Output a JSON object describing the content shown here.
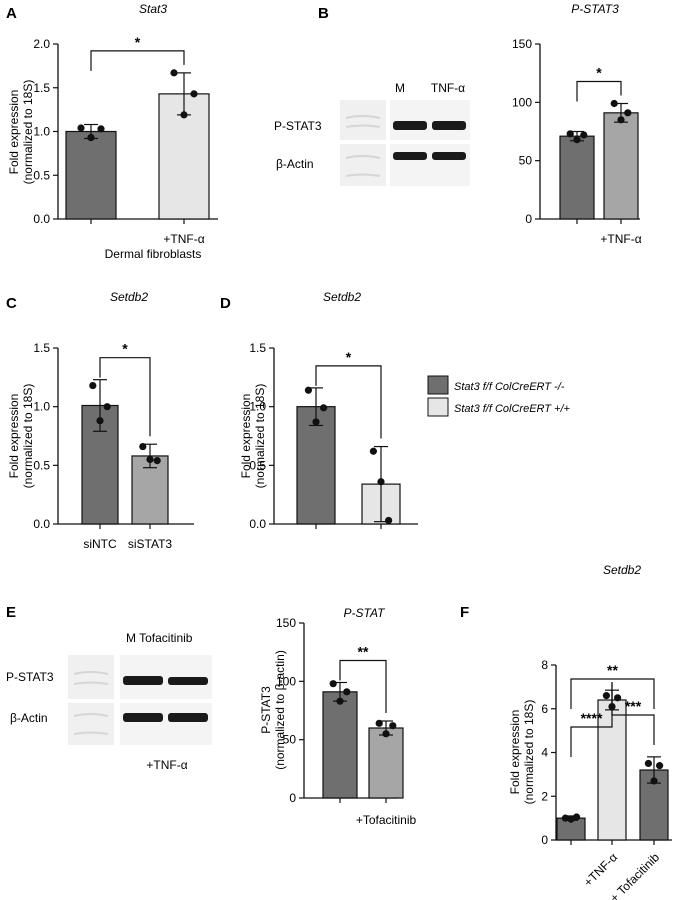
{
  "figure": {
    "colors": {
      "dark": "#6f6f6f",
      "light": "#e6e6e6",
      "mid": "#a6a6a6",
      "blot_band": "#1a1a1a"
    },
    "legend": {
      "entries": [
        {
          "label": "Stat3 f/f ColCreERT -/-",
          "color": "#6f6f6f"
        },
        {
          "label": "Stat3 f/f ColCreERT +/+",
          "color": "#e6e6e6"
        }
      ]
    },
    "blots": {
      "B": {
        "lanes": [
          "M",
          "TNF-α"
        ],
        "rows": [
          "P-STAT3",
          "β-Actin"
        ]
      },
      "E": {
        "header": "M Tofacitinib",
        "rows": [
          "P-STAT3",
          "β-Actin"
        ],
        "footer": "+TNF-α"
      }
    }
  },
  "chart_data": [
    {
      "panel": "A",
      "type": "bar",
      "title": "Stat3",
      "ylabel": "Fold expression (normalized to 18S)",
      "xlabel": "Dermal fibroblasts",
      "ylim": [
        0,
        2.0
      ],
      "yticks": [
        0.0,
        0.5,
        1.0,
        1.5,
        2.0
      ],
      "ytick_labels": [
        "0.0",
        "0.5",
        "1.0",
        "1.5",
        "2.0"
      ],
      "categories": [
        "",
        "+TNF-α"
      ],
      "values": [
        1.0,
        1.43
      ],
      "errors": [
        0.08,
        0.24
      ],
      "points": [
        [
          1.04,
          0.93,
          1.03
        ],
        [
          1.67,
          1.19,
          1.43
        ]
      ],
      "colors": [
        "#6f6f6f",
        "#e6e6e6"
      ],
      "significance": [
        {
          "between": [
            0,
            1
          ],
          "label": "*"
        }
      ]
    },
    {
      "panel": "B",
      "type": "bar",
      "title": "P-STAT3",
      "ylabel": "",
      "xlabel": "",
      "ylim": [
        0,
        150
      ],
      "yticks": [
        0,
        50,
        100,
        150
      ],
      "ytick_labels": [
        "0",
        "50",
        "100",
        "150"
      ],
      "categories": [
        "",
        "+TNF-α"
      ],
      "values": [
        71,
        91
      ],
      "errors": [
        4,
        8
      ],
      "points": [
        [
          73,
          68,
          72
        ],
        [
          99,
          85,
          91
        ]
      ],
      "colors": [
        "#6f6f6f",
        "#a6a6a6"
      ],
      "significance": [
        {
          "between": [
            0,
            1
          ],
          "label": "*"
        }
      ]
    },
    {
      "panel": "C",
      "type": "bar",
      "title": "Setdb2",
      "ylabel": "Fold expression (normalized to 18S)",
      "xlabel": "",
      "ylim": [
        0,
        1.5
      ],
      "yticks": [
        0.0,
        0.5,
        1.0,
        1.5
      ],
      "ytick_labels": [
        "0.0",
        "0.5",
        "1.0",
        "1.5"
      ],
      "categories": [
        "siNTC",
        "siSTAT3"
      ],
      "values": [
        1.01,
        0.58
      ],
      "errors": [
        0.22,
        0.1
      ],
      "points": [
        [
          1.18,
          0.88,
          1.0
        ],
        [
          0.66,
          0.55,
          0.54
        ]
      ],
      "colors": [
        "#6f6f6f",
        "#a6a6a6"
      ],
      "significance": [
        {
          "between": [
            0,
            1
          ],
          "label": "*"
        }
      ]
    },
    {
      "panel": "D",
      "type": "bar",
      "title": "Setdb2",
      "ylabel": "Fold expression (normalized to 18S)",
      "xlabel": "",
      "ylim": [
        0,
        1.5
      ],
      "yticks": [
        0.0,
        0.5,
        1.0,
        1.5
      ],
      "ytick_labels": [
        "0.0",
        "0.5",
        "1.0",
        "1.5"
      ],
      "categories": [
        "",
        ""
      ],
      "values": [
        1.0,
        0.34
      ],
      "errors": [
        0.16,
        0.32
      ],
      "points": [
        [
          1.14,
          0.87,
          0.99
        ],
        [
          0.62,
          0.36,
          0.03
        ]
      ],
      "colors": [
        "#6f6f6f",
        "#e6e6e6"
      ],
      "significance": [
        {
          "between": [
            0,
            1
          ],
          "label": "*"
        }
      ]
    },
    {
      "panel": "E",
      "type": "bar",
      "title": "P-STAT",
      "ylabel": "P-STAT3 (normalized to β-actin)",
      "xlabel": "",
      "ylim": [
        0,
        150
      ],
      "yticks": [
        0,
        50,
        100,
        150
      ],
      "ytick_labels": [
        "0",
        "50",
        "100",
        "150"
      ],
      "categories": [
        "",
        "+Tofacitinib"
      ],
      "values": [
        91,
        60
      ],
      "errors": [
        8,
        6
      ],
      "points": [
        [
          98,
          83,
          91
        ],
        [
          64,
          55,
          62
        ]
      ],
      "colors": [
        "#6f6f6f",
        "#a6a6a6"
      ],
      "significance": [
        {
          "between": [
            0,
            1
          ],
          "label": "**"
        }
      ]
    },
    {
      "panel": "F",
      "type": "bar",
      "title": "Setdb2",
      "ylabel": "Fold expression (normalized to 18S)",
      "xlabel": "",
      "ylim": [
        0,
        8
      ],
      "yticks": [
        0,
        2,
        4,
        6,
        8
      ],
      "ytick_labels": [
        "0",
        "2",
        "4",
        "6",
        "8"
      ],
      "categories": [
        "",
        "+TNF-α",
        "TNF-α + Tofacitinib"
      ],
      "values": [
        1.0,
        6.4,
        3.2
      ],
      "errors": [
        0.1,
        0.45,
        0.6
      ],
      "points": [
        [
          1.0,
          0.95,
          1.05
        ],
        [
          6.6,
          6.1,
          6.5
        ],
        [
          3.5,
          2.7,
          3.4
        ]
      ],
      "colors": [
        "#6f6f6f",
        "#e6e6e6",
        "#6f6f6f"
      ],
      "significance": [
        {
          "between": [
            0,
            1
          ],
          "label": "****"
        },
        {
          "between": [
            1,
            2
          ],
          "label": "***"
        },
        {
          "between": [
            0,
            2
          ],
          "label": "**"
        }
      ]
    }
  ]
}
